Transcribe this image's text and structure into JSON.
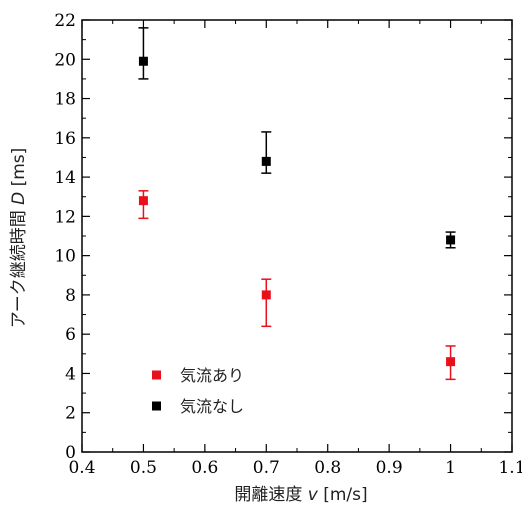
{
  "chart_data": {
    "type": "scatter",
    "xlabel": {
      "main": "開離速度 ",
      "var": "v",
      "unit": " [m/s]"
    },
    "ylabel": {
      "main": "アーク継続時間 ",
      "var": "D",
      "unit": " [ms]"
    },
    "xlim": [
      0.4,
      1.1
    ],
    "ylim": [
      0,
      22
    ],
    "xticks": [
      "0.4",
      "0.5",
      "0.6",
      "0.7",
      "0.8",
      "0.9",
      "1",
      "1.1"
    ],
    "yticks": [
      "0",
      "2",
      "4",
      "6",
      "8",
      "10",
      "12",
      "14",
      "16",
      "18",
      "20",
      "22"
    ],
    "grid": false,
    "legend_position": "lower-left",
    "series": [
      {
        "name": "気流あり",
        "color": "#e8101a",
        "points": [
          {
            "x": 0.5,
            "y": 12.8,
            "err_low": 11.9,
            "err_high": 13.3
          },
          {
            "x": 0.7,
            "y": 8.0,
            "err_low": 6.4,
            "err_high": 8.8
          },
          {
            "x": 1.0,
            "y": 4.6,
            "err_low": 3.7,
            "err_high": 5.4
          }
        ]
      },
      {
        "name": "気流なし",
        "color": "#000000",
        "points": [
          {
            "x": 0.5,
            "y": 19.9,
            "err_low": 19.0,
            "err_high": 21.6
          },
          {
            "x": 0.7,
            "y": 14.8,
            "err_low": 14.2,
            "err_high": 16.3
          },
          {
            "x": 1.0,
            "y": 10.8,
            "err_low": 10.4,
            "err_high": 11.2
          }
        ]
      }
    ]
  }
}
